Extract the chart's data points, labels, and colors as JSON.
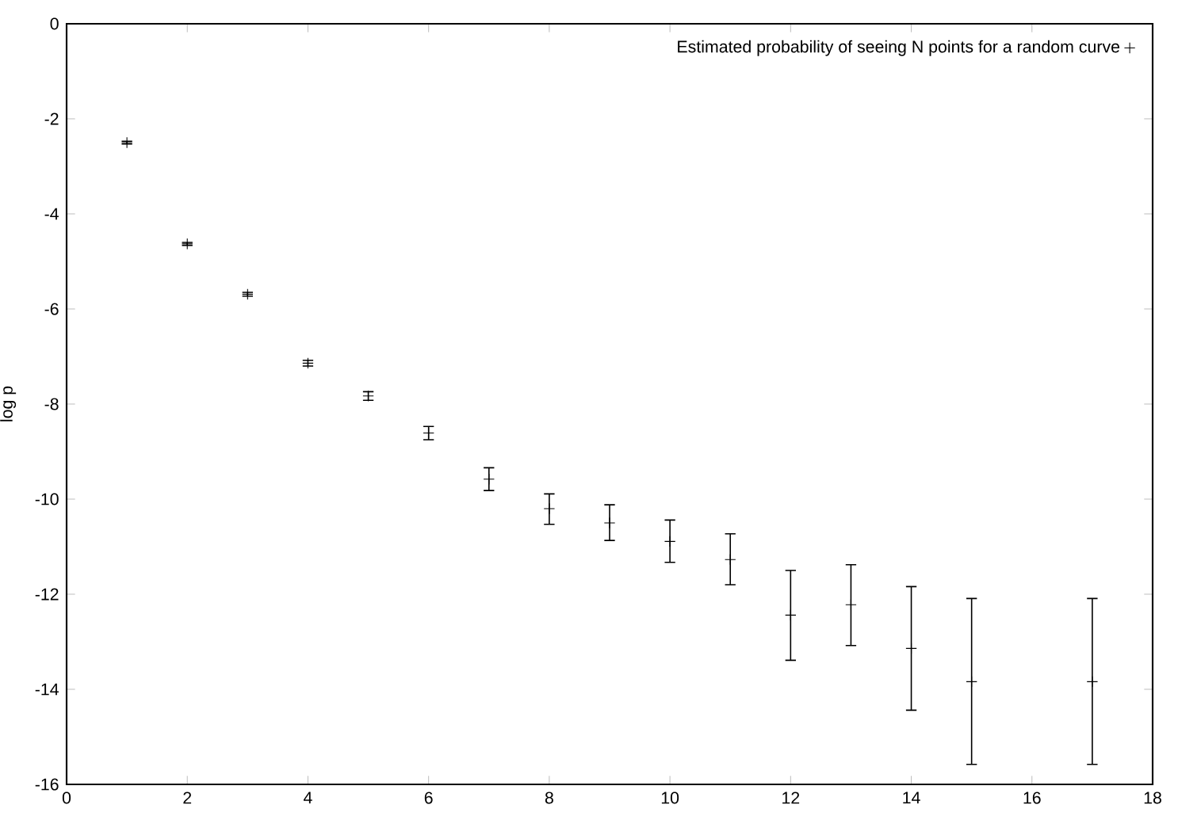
{
  "chart_data": {
    "type": "scatter",
    "ylabel": "log p",
    "x": [
      1,
      2,
      3,
      4,
      5,
      6,
      7,
      8,
      9,
      10,
      11,
      12,
      13,
      14,
      15,
      17
    ],
    "series": [
      {
        "name": "Estimated probability of seeing N points for a random curve",
        "color": "#000000",
        "values": [
          -2.5,
          -4.63,
          -5.69,
          -7.14,
          -7.83,
          -8.61,
          -9.58,
          -10.2,
          -10.5,
          -10.89,
          -11.27,
          -12.44,
          -12.22,
          -13.14,
          -13.84,
          -13.84
        ],
        "errors": [
          0.03,
          0.03,
          0.04,
          0.06,
          0.09,
          [
            -8.75,
            -8.47
          ],
          [
            -9.82,
            -9.34
          ],
          [
            -10.53,
            -9.89
          ],
          [
            -10.87,
            -10.12
          ],
          [
            -11.33,
            -10.44
          ],
          [
            -11.8,
            -10.73
          ],
          [
            -13.39,
            -11.5
          ],
          [
            -13.08,
            -11.38
          ],
          [
            -14.44,
            -11.84
          ],
          [
            -15.58,
            -12.09
          ],
          [
            -15.58,
            -12.09
          ]
        ]
      }
    ],
    "xlim": [
      0,
      18
    ],
    "ylim": [
      -16,
      0
    ],
    "xticks": [
      0,
      2,
      4,
      6,
      8,
      10,
      12,
      14,
      16,
      18
    ],
    "yticks": [
      0,
      -2,
      -4,
      -6,
      -8,
      -10,
      -12,
      -14,
      -16
    ],
    "marker": "cross",
    "legend": "top right"
  }
}
